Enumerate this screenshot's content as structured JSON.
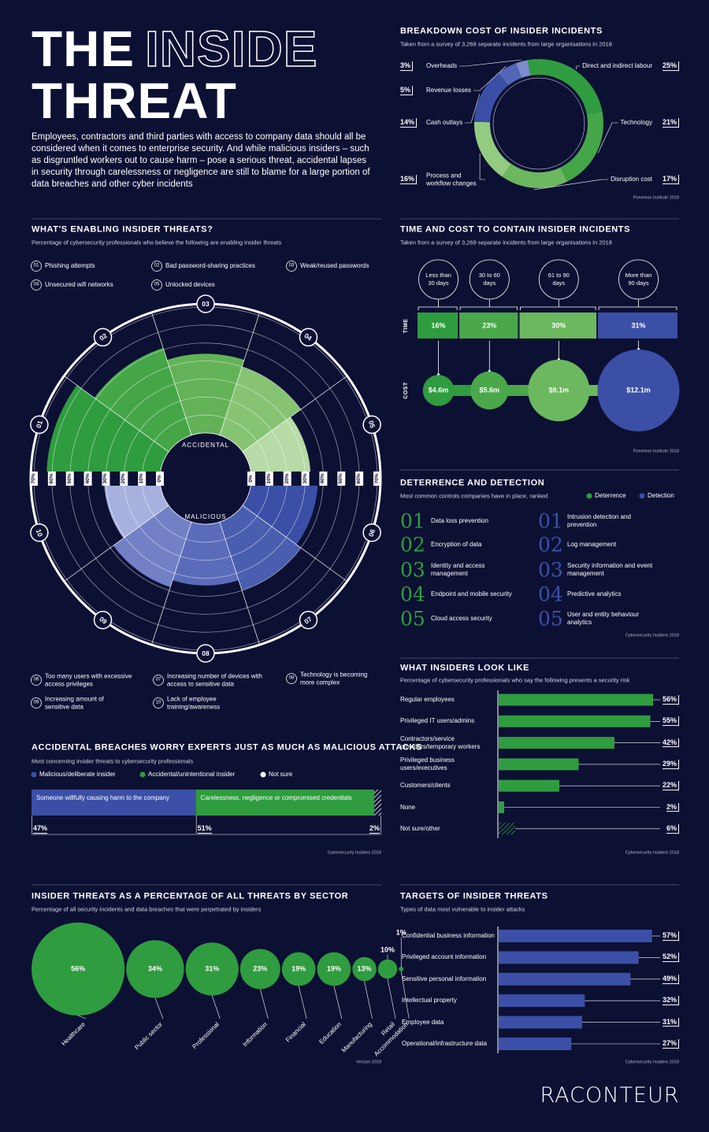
{
  "header": {
    "title_line1": "THE",
    "title_outline": "INSIDE",
    "title_line2": "THREAT",
    "intro": "Employees, contractors and third parties with access to company data should all be considered when it comes to enterprise security. And while malicious insiders – such as disgruntled workers out to cause harm – pose a serious threat, accidental lapses in security through carelessness or negligence are still to blame for a large portion of data breaches and other cyber incidents"
  },
  "chart_data": [
    {
      "type": "donut",
      "title": "BREAKDOWN COST OF INSIDER INCIDENTS",
      "subtitle": "Taken from a survey of 3,269 separate incidents from large organisations in 2018",
      "categories": [
        "Direct and indirect labour",
        "Technology",
        "Disruption cost",
        "Process and workflow changes",
        "Cash outlays",
        "Revenue losses",
        "Overheads"
      ],
      "values": [
        25,
        21,
        17,
        16,
        14,
        5,
        3
      ],
      "value_labels": [
        "25%",
        "21%",
        "17%",
        "16%",
        "14%",
        "5%",
        "3%"
      ],
      "colors": [
        "#2f9c3f",
        "#45a648",
        "#6cb85f",
        "#93cb80",
        "#3b4fa6",
        "#5265b6",
        "#7d8bcb"
      ],
      "source": "Ponemon Institute 2018"
    },
    {
      "type": "polar",
      "title": "WHAT'S ENABLING INSIDER THREATS?",
      "subtitle": "Percentage of cybersecurity professionals who believe the following are enabling insider threats",
      "categories": [
        "Phishing attempts",
        "Bad password-sharing practices",
        "Weak/reused passwords",
        "Unsecured wifi networks",
        "Unlocked devices",
        "Too many users with excessive access privileges",
        "Increasing number of devices with access to sensitive data",
        "Technology is becoming more complex",
        "Increasing amount of sensitive data",
        "Lack of employee training/awareness"
      ],
      "category_numbers": [
        "01",
        "02",
        "03",
        "04",
        "05",
        "06",
        "07",
        "08",
        "09",
        "10"
      ],
      "values": [
        63,
        51,
        44,
        40,
        33,
        37,
        40,
        34,
        38,
        31
      ],
      "colors": [
        "#2f9c3f",
        "#45a648",
        "#63b258",
        "#86c474",
        "#b6dba6",
        "#3b4fa6",
        "#4a5eb0",
        "#5a6cb9",
        "#7280c6",
        "#a8b1de"
      ],
      "group_labels": [
        "ACCIDENTAL",
        "MALICIOUS"
      ],
      "rlim": [
        0,
        70
      ],
      "rticks": [
        {
          "value": 0,
          "label": "0%"
        },
        {
          "value": 10,
          "label": "10%"
        },
        {
          "value": 20,
          "label": "20%"
        },
        {
          "value": 30,
          "label": "30%"
        },
        {
          "value": 40,
          "label": "40%"
        },
        {
          "value": 50,
          "label": "50%"
        },
        {
          "value": 60,
          "label": "60%"
        },
        {
          "value": 70,
          "label": "70%"
        }
      ],
      "grid": true
    },
    {
      "type": "time-cost",
      "title": "TIME AND COST TO CONTAIN INSIDER INCIDENTS",
      "subtitle": "Taken from a survey of 3,269 separate incidents from large organisations in 2018",
      "categories": [
        "Less than 30 days",
        "30 to 60 days",
        "61 to 90 days",
        "More than 90 days"
      ],
      "series": [
        {
          "name": "TIME",
          "values": [
            16,
            23,
            30,
            31
          ],
          "value_labels": [
            "16%",
            "23%",
            "30%",
            "31%"
          ],
          "colors": [
            "#2f9c3f",
            "#4aa84a",
            "#6cb85f",
            "#3b4fa6"
          ]
        },
        {
          "name": "COST",
          "values": [
            4.6,
            5.6,
            9.1,
            12.1
          ],
          "value_labels": [
            "$4.6m",
            "$5.6m",
            "$9.1m",
            "$12.1m"
          ],
          "colors": [
            "#2f9c3f",
            "#4aa84a",
            "#6cb85f",
            "#3b4fa6"
          ]
        }
      ],
      "source": "Ponemon Institute 2018"
    },
    {
      "type": "hbar",
      "title": "WHAT INSIDERS LOOK LIKE",
      "subtitle": "Percentage of cybersecurity professionals who say the following presents a security risk",
      "categories": [
        "Regular employees",
        "Privileged IT users/admins",
        "Contractors/service providers/temporary workers",
        "Privileged business users/executives",
        "Customers/clients",
        "None",
        "Not sure/other"
      ],
      "values": [
        56,
        55,
        42,
        29,
        22,
        2,
        6
      ],
      "value_labels": [
        "56%",
        "55%",
        "42%",
        "29%",
        "22%",
        "2%",
        "6%"
      ],
      "color": "#2f9c3f",
      "patterns": [
        "solid",
        "solid",
        "solid",
        "solid",
        "solid",
        "solid",
        "hatched"
      ],
      "xlim": [
        0,
        60
      ],
      "source": "Cybersecurity Insiders 2018"
    },
    {
      "type": "stacked-bar",
      "title": "ACCIDENTAL BREACHES WORRY EXPERTS JUST AS MUCH AS MALICIOUS ATTACKS",
      "subtitle": "Most concerning insider threats to cybersecurity professionals",
      "series": [
        {
          "name": "Malicious/deliberate insider",
          "color": "#3b4fa6",
          "pattern": "solid",
          "values": [
            47
          ],
          "value_labels": [
            "47%"
          ],
          "description": "Someone willfully causing harm to the company"
        },
        {
          "name": "Accidental/unintentional insider",
          "color": "#2f9c3f",
          "pattern": "solid",
          "values": [
            51
          ],
          "value_labels": [
            "51%"
          ],
          "description": "Carelessness, negligence or compromised credentials"
        },
        {
          "name": "Not sure",
          "color": "#ffffff",
          "pattern": "hatched",
          "values": [
            2
          ],
          "value_labels": [
            "2%"
          ]
        }
      ],
      "xlim": [
        0,
        100
      ],
      "source": "Cybersecurity Insiders 2018"
    },
    {
      "type": "bubble-row",
      "title": "INSIDER THREATS AS A PERCENTAGE OF ALL THREATS BY SECTOR",
      "subtitle": "Percentage of all security incidents and data breaches that were perpetrated by insiders",
      "categories": [
        "Healthcare",
        "Public sector",
        "Professional",
        "Information",
        "Financial",
        "Education",
        "Manufacturing",
        "Retail",
        "Accommodation"
      ],
      "values": [
        56,
        34,
        31,
        23,
        19,
        19,
        13,
        10,
        1
      ],
      "value_labels": [
        "56%",
        "34%",
        "31%",
        "23%",
        "19%",
        "19%",
        "13%",
        "10%",
        "1%"
      ],
      "color": "#2f9c3f",
      "source": "Verizon 2018"
    },
    {
      "type": "hbar",
      "title": "TARGETS OF INSIDER THREATS",
      "subtitle": "Types of data most vulnerable to insider attacks",
      "categories": [
        "Confidential business information",
        "Privileged account information",
        "Sensitive personal information",
        "Intellectual property",
        "Employee data",
        "Operational/infrastructure data"
      ],
      "values": [
        57,
        52,
        49,
        32,
        31,
        27
      ],
      "value_labels": [
        "57%",
        "52%",
        "49%",
        "32%",
        "31%",
        "27%"
      ],
      "color": "#3b4fa6",
      "patterns": [
        "solid",
        "solid",
        "solid",
        "solid",
        "solid",
        "solid"
      ],
      "xlim": [
        0,
        60
      ],
      "source": "Cybersecurity Insiders 2018"
    }
  ],
  "deterrence": {
    "title": "DETERRENCE AND DETECTION",
    "subtitle": "Most common controls companies have in place, ranked",
    "legend": [
      "Deterrence",
      "Detection"
    ],
    "colors": [
      "#2f9c3f",
      "#3b4fa6"
    ],
    "deterrence_items": [
      {
        "rank": "01",
        "label": "Data loss prevention"
      },
      {
        "rank": "02",
        "label": "Encryption of data"
      },
      {
        "rank": "03",
        "label": "Identity and access management"
      },
      {
        "rank": "04",
        "label": "Endpoint and mobile security"
      },
      {
        "rank": "05",
        "label": "Cloud access security"
      }
    ],
    "detection_items": [
      {
        "rank": "01",
        "label": "Intrusion detection and prevention"
      },
      {
        "rank": "02",
        "label": "Log management"
      },
      {
        "rank": "03",
        "label": "Security information and event management"
      },
      {
        "rank": "04",
        "label": "Predictive analytics"
      },
      {
        "rank": "05",
        "label": "User and entity behaviour analytics"
      }
    ],
    "source": "Cybersecurity Insiders 2018"
  },
  "logo": "RACONTEUR"
}
